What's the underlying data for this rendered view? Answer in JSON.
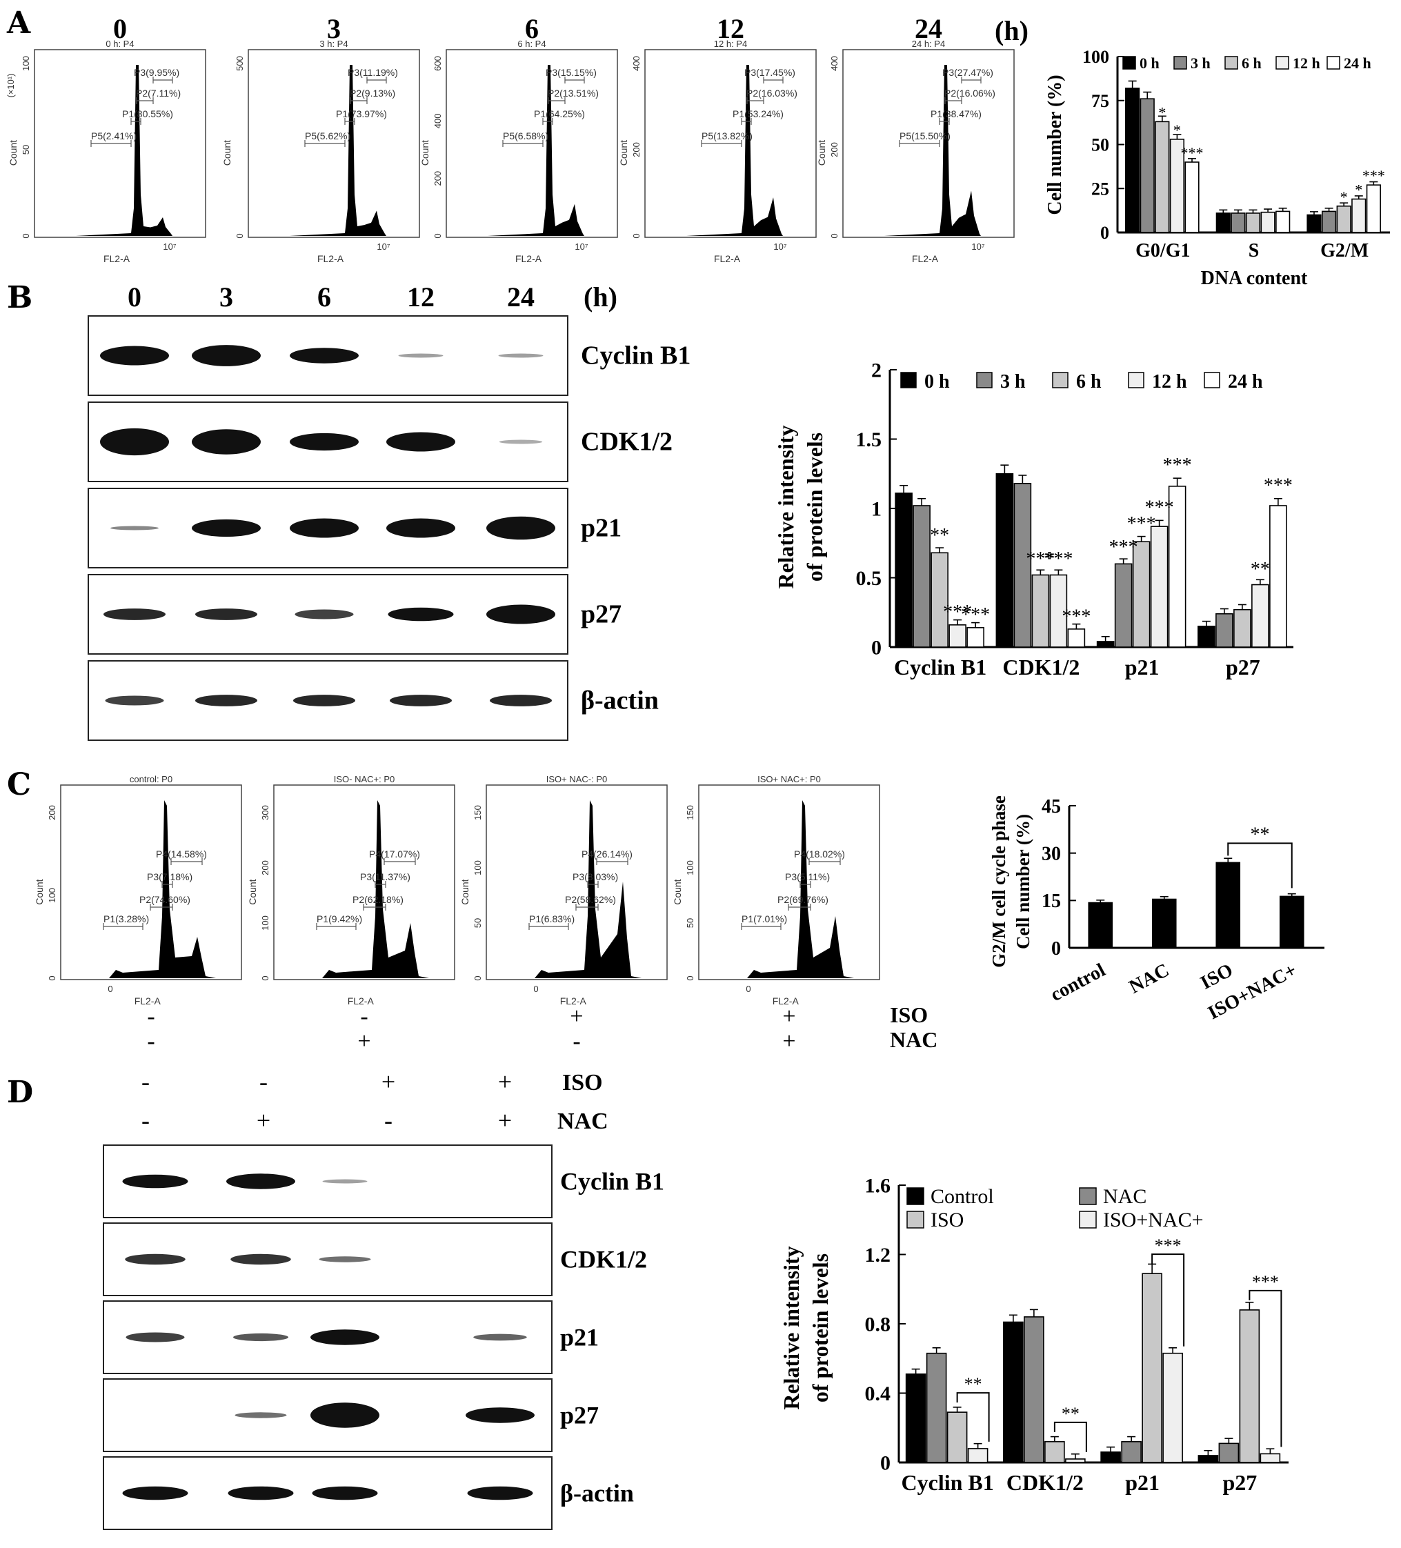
{
  "panels": {
    "A": {
      "letter": "A",
      "time_unit": "(h)",
      "histograms": [
        {
          "time": "0",
          "title": "0 h: P4",
          "yaxis_label": "Count",
          "scale_note": "(×10¹)",
          "yticks": [
            "0",
            "50",
            "100"
          ],
          "xlabel": "FL2-A",
          "xtick": "10⁷",
          "gates": [
            "P3(9.95%)",
            "P2(7.11%)",
            "P1(80.55%)",
            "P5(2.41%)"
          ]
        },
        {
          "time": "3",
          "title": "3 h: P4",
          "yaxis_label": "Count",
          "scale_note": "",
          "yticks": [
            "0",
            "500"
          ],
          "xlabel": "FL2-A",
          "xtick": "10⁷",
          "gates": [
            "P3(11.19%)",
            "P2(9.13%)",
            "P1(73.97%)",
            "P5(5.62%)"
          ]
        },
        {
          "time": "6",
          "title": "6 h: P4",
          "yaxis_label": "Count",
          "scale_note": "",
          "yticks": [
            "0",
            "200",
            "400",
            "600"
          ],
          "xlabel": "FL2-A",
          "xtick": "10⁷",
          "gates": [
            "P3(15.15%)",
            "P2(13.51%)",
            "P1(64.25%)",
            "P5(6.58%)"
          ]
        },
        {
          "time": "12",
          "title": "12 h: P4",
          "yaxis_label": "Count",
          "scale_note": "",
          "yticks": [
            "0",
            "200",
            "400"
          ],
          "xlabel": "FL2-A",
          "xtick": "10⁷",
          "gates": [
            "P3(17.45%)",
            "P2(16.03%)",
            "P1(53.24%)",
            "P5(13.82%)"
          ]
        },
        {
          "time": "24",
          "title": "24 h: P4",
          "yaxis_label": "Count",
          "scale_note": "",
          "yticks": [
            "0",
            "200",
            "400"
          ],
          "xlabel": "FL2-A",
          "xtick": "10⁷",
          "gates": [
            "P3(27.47%)",
            "P2(16.06%)",
            "P1(38.47%)",
            "P5(15.50%)"
          ]
        }
      ]
    },
    "B": {
      "letter": "B",
      "lanes": [
        "0",
        "3",
        "6",
        "12",
        "24"
      ],
      "time_unit": "(h)",
      "blot_labels": [
        "Cyclin B1",
        "CDK1/2",
        "p21",
        "p27",
        "β-actin"
      ]
    },
    "C": {
      "letter": "C",
      "histograms": [
        {
          "title": "control: P0",
          "yaxis_label": "Count",
          "yticks": [
            "0",
            "100",
            "200"
          ],
          "xlabel": "FL2-A",
          "xtick": "0",
          "gates": [
            "P4(14.58%)",
            "P3(7.18%)",
            "P2(74.60%)",
            "P1(3.28%)"
          ],
          "iso": "-",
          "nac": "-"
        },
        {
          "title": "ISO- NAC+: P0",
          "yaxis_label": "Count",
          "yticks": [
            "0",
            "100",
            "200",
            "300"
          ],
          "xlabel": "FL2-A",
          "xtick": "",
          "gates": [
            "P4(17.07%)",
            "P3(11.37%)",
            "P2(62.18%)",
            "P1(9.42%)"
          ],
          "iso": "-",
          "nac": "+"
        },
        {
          "title": "ISO+ NAC-: P0",
          "yaxis_label": "Count",
          "yticks": [
            "0",
            "50",
            "100",
            "150"
          ],
          "xlabel": "FL2-A",
          "xtick": "0",
          "gates": [
            "P4(26.14%)",
            "P3(8.03%)",
            "P2(58.62%)",
            "P1(6.83%)"
          ],
          "iso": "+",
          "nac": "-"
        },
        {
          "title": "ISO+ NAC+: P0",
          "yaxis_label": "Count",
          "yticks": [
            "0",
            "50",
            "100",
            "150"
          ],
          "xlabel": "FL2-A",
          "xtick": "0",
          "gates": [
            "P4(18.02%)",
            "P3(5.11%)",
            "P2(69.76%)",
            "P1(7.01%)"
          ],
          "iso": "+",
          "nac": "+"
        }
      ],
      "iso_label": "ISO",
      "nac_label": "NAC"
    },
    "D": {
      "letter": "D",
      "iso_label": "ISO",
      "nac_label": "NAC",
      "iso_signs": [
        "-",
        "-",
        "+",
        "+"
      ],
      "nac_signs": [
        "-",
        "+",
        "-",
        "+"
      ],
      "blot_labels": [
        "Cyclin B1",
        "CDK1/2",
        "p21",
        "p27",
        "β-actin"
      ]
    }
  },
  "chart_data": [
    {
      "id": "A-bar",
      "type": "bar",
      "categories": [
        "G0/G1",
        "S",
        "G2/M"
      ],
      "xlabel": "DNA content",
      "ylabel": "Cell number (%)",
      "ylim": [
        0,
        100
      ],
      "yticks": [
        0,
        25,
        50,
        75,
        100
      ],
      "legend_position": "top",
      "series": [
        {
          "name": "0 h",
          "color": "#000000",
          "values": [
            82,
            11,
            10
          ]
        },
        {
          "name": "3 h",
          "color": "#8a8a8a",
          "values": [
            76,
            11,
            12
          ]
        },
        {
          "name": "6 h",
          "color": "#c8c8c8",
          "values": [
            63,
            11,
            15
          ]
        },
        {
          "name": "12 h",
          "color": "#efefef",
          "values": [
            53,
            11.5,
            19
          ]
        },
        {
          "name": "24 h",
          "color": "#ffffff",
          "values": [
            40,
            12,
            27
          ]
        }
      ],
      "annotations": [
        {
          "category": 0,
          "series": 2,
          "text": "*"
        },
        {
          "category": 0,
          "series": 3,
          "text": "*"
        },
        {
          "category": 0,
          "series": 4,
          "text": "***"
        },
        {
          "category": 2,
          "series": 2,
          "text": "*"
        },
        {
          "category": 2,
          "series": 3,
          "text": "*"
        },
        {
          "category": 2,
          "series": 4,
          "text": "***"
        }
      ]
    },
    {
      "id": "B-bar",
      "type": "bar",
      "categories": [
        "Cyclin B1",
        "CDK1/2",
        "p21",
        "p27"
      ],
      "xlabel": "",
      "ylabel": "Relative intensity of protein levels",
      "ylabel_lines": [
        "Relative intensity",
        "of protein levels"
      ],
      "ylim": [
        0,
        2
      ],
      "yticks": [
        "0",
        "0.5",
        "1",
        "1.5",
        "2"
      ],
      "legend_position": "top",
      "series": [
        {
          "name": "0 h",
          "color": "#000000",
          "values": [
            1.11,
            1.25,
            0.04,
            0.15
          ]
        },
        {
          "name": "3 h",
          "color": "#8a8a8a",
          "values": [
            1.02,
            1.18,
            0.6,
            0.24
          ]
        },
        {
          "name": "6 h",
          "color": "#c8c8c8",
          "values": [
            0.68,
            0.52,
            0.76,
            0.27
          ]
        },
        {
          "name": "12 h",
          "color": "#efefef",
          "values": [
            0.16,
            0.52,
            0.87,
            0.45
          ]
        },
        {
          "name": "24 h",
          "color": "#ffffff",
          "values": [
            0.14,
            0.13,
            1.16,
            1.02
          ]
        }
      ],
      "annotations": [
        {
          "category": 0,
          "series": 2,
          "text": "**"
        },
        {
          "category": 0,
          "series": 3,
          "text": "***"
        },
        {
          "category": 0,
          "series": 4,
          "text": "***"
        },
        {
          "category": 1,
          "series": 2,
          "text": "***"
        },
        {
          "category": 1,
          "series": 3,
          "text": "***"
        },
        {
          "category": 1,
          "series": 4,
          "text": "***"
        },
        {
          "category": 2,
          "series": 1,
          "text": "***"
        },
        {
          "category": 2,
          "series": 2,
          "text": "***"
        },
        {
          "category": 2,
          "series": 3,
          "text": "***"
        },
        {
          "category": 2,
          "series": 4,
          "text": "***"
        },
        {
          "category": 3,
          "series": 3,
          "text": "**"
        },
        {
          "category": 3,
          "series": 4,
          "text": "***"
        }
      ]
    },
    {
      "id": "C-bar",
      "type": "bar",
      "categories": [
        "control",
        "NAC",
        "ISO",
        "ISO+NAC+"
      ],
      "ylabel_lines": [
        "G2/M cell cycle phase",
        "Cell number (%)"
      ],
      "ylim": [
        0,
        45
      ],
      "yticks": [
        0,
        15,
        30,
        45
      ],
      "series": [
        {
          "color": "#000000",
          "values": [
            14.3,
            15.4,
            27.0,
            16.3
          ]
        }
      ],
      "significance": [
        {
          "from": 2,
          "to": 3,
          "text": "**"
        }
      ]
    },
    {
      "id": "D-bar",
      "type": "bar",
      "categories": [
        "Cyclin B1",
        "CDK1/2",
        "p21",
        "p27"
      ],
      "ylabel_lines": [
        "Relative intensity",
        "of protein levels"
      ],
      "ylim": [
        0,
        1.6
      ],
      "yticks": [
        "0",
        "0.4",
        "0.8",
        "1.2",
        "1.6"
      ],
      "legend_position": "top",
      "series": [
        {
          "name": "Control",
          "color": "#000000",
          "values": [
            0.51,
            0.81,
            0.06,
            0.04
          ]
        },
        {
          "name": "NAC",
          "color": "#8a8a8a",
          "values": [
            0.63,
            0.84,
            0.12,
            0.11
          ]
        },
        {
          "name": "ISO",
          "color": "#c8c8c8",
          "values": [
            0.29,
            0.12,
            1.09,
            0.88
          ]
        },
        {
          "name": "ISO+NAC+",
          "color": "#efefef",
          "values": [
            0.08,
            0.02,
            0.63,
            0.05
          ]
        }
      ],
      "significance": [
        {
          "category": 0,
          "from": 2,
          "to": 3,
          "text": "**"
        },
        {
          "category": 1,
          "from": 2,
          "to": 3,
          "text": "**"
        },
        {
          "category": 2,
          "from": 2,
          "to": 3,
          "text": "***"
        },
        {
          "category": 3,
          "from": 2,
          "to": 3,
          "text": "***"
        }
      ]
    }
  ]
}
